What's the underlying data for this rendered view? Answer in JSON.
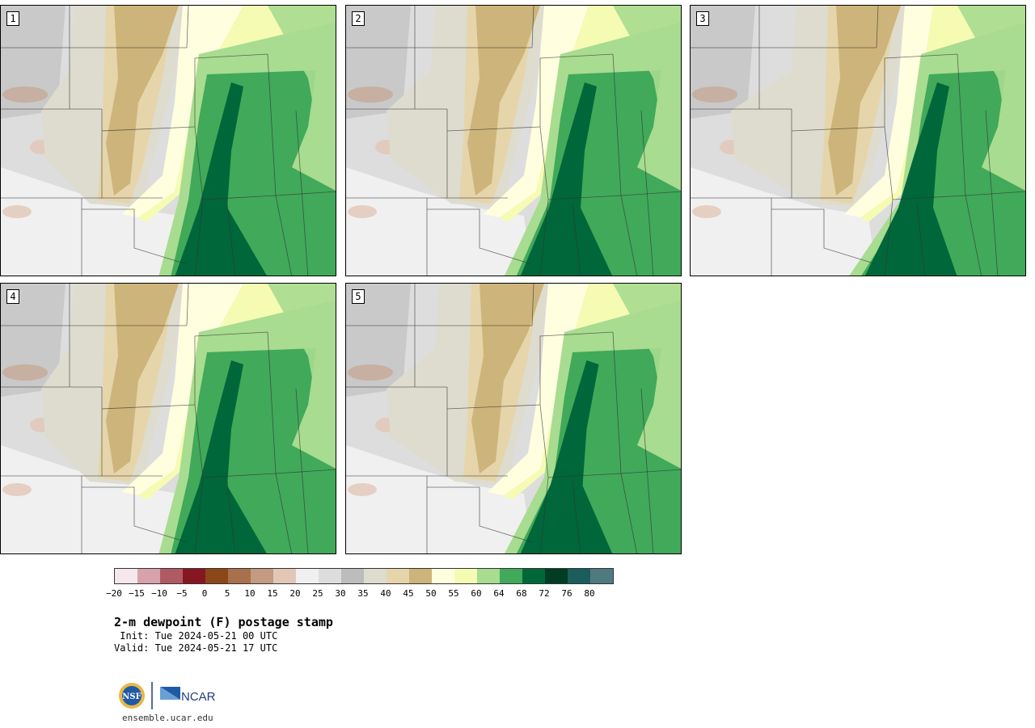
{
  "panels": [
    {
      "label": "1"
    },
    {
      "label": "2"
    },
    {
      "label": "3"
    },
    {
      "label": "4"
    },
    {
      "label": "5"
    }
  ],
  "colorbar": {
    "colors": [
      "#f4e8ec",
      "#d8a2ad",
      "#b05a63",
      "#861622",
      "#8c4718",
      "#a8704c",
      "#c49a80",
      "#e2c7b6",
      "#f0f0f0",
      "#dddddd",
      "#bcbcbc",
      "#dedcce",
      "#e6d5ab",
      "#cdb47a",
      "#ffffe0",
      "#f6fbb4",
      "#a8dc90",
      "#41a95a",
      "#00673a",
      "#003d24",
      "#1b5c5d",
      "#4f7b80"
    ],
    "ticks": [
      "−20",
      "−15",
      "−10",
      "−5",
      "0",
      "5",
      "10",
      "15",
      "20",
      "25",
      "30",
      "35",
      "40",
      "45",
      "50",
      "55",
      "60",
      "64",
      "68",
      "72",
      "76",
      "80"
    ]
  },
  "title": "2-m dewpoint (F) postage stamp",
  "init": " Init: Tue 2024-05-21 00 UTC",
  "valid": "Valid: Tue 2024-05-21 17 UTC",
  "logos": {
    "nsf": "NSF",
    "ncar": "NCAR"
  },
  "url": "ensemble.ucar.edu"
}
